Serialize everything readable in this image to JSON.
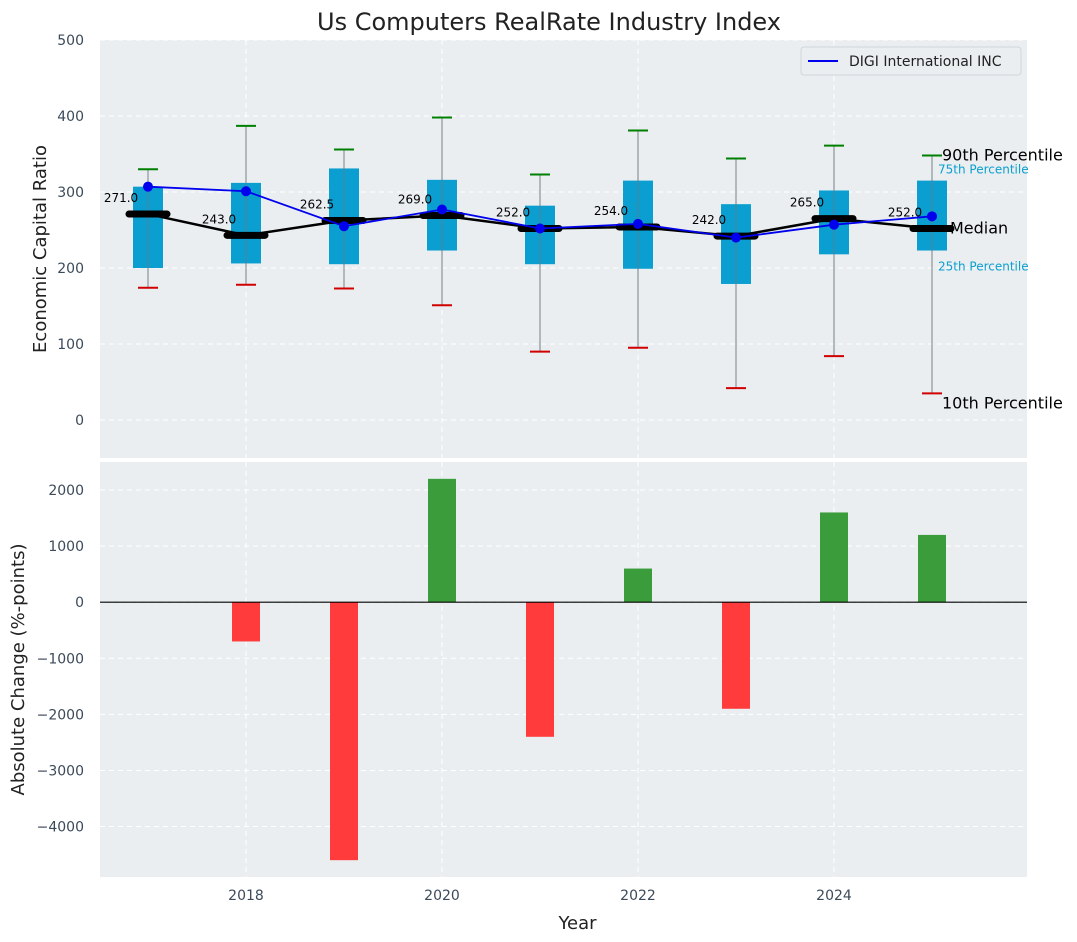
{
  "title": "Us Computers RealRate Industry Index",
  "colors": {
    "panel_bg": "#eaeef0",
    "box_fill": "#0a9fd0",
    "whisker": "#8a9499",
    "cap_top": "#008000",
    "cap_bottom": "#d00000",
    "median": "#000000",
    "company": "#0000ee",
    "bar_positive": "#3a9c3a",
    "bar_negative": "#ff3b3b",
    "zero_line": "#000000",
    "tick_text": "#3c4a5a"
  },
  "chart_data": [
    {
      "type": "box",
      "ylabel": "Economic Capital Ratio",
      "ylim": [
        -50,
        500
      ],
      "yticks": [
        0,
        100,
        200,
        300,
        400,
        500
      ],
      "grid": true,
      "legend": {
        "placement": "top-right",
        "entries": [
          "DIGI International INC"
        ]
      },
      "x": [
        2017,
        2018,
        2019,
        2020,
        2021,
        2022,
        2023,
        2024,
        2025
      ],
      "p10": [
        174,
        178,
        173,
        151,
        90,
        95,
        42,
        84,
        35
      ],
      "p25": [
        200,
        206,
        205,
        223,
        205,
        199,
        179,
        218,
        223
      ],
      "median": [
        271,
        243,
        262.5,
        269,
        252,
        254,
        242,
        265,
        252
      ],
      "median_labels": [
        "271.0",
        "243.0",
        "262.5",
        "269.0",
        "252.0",
        "254.0",
        "242.0",
        "265.0",
        "252.0"
      ],
      "p75": [
        307,
        312,
        331,
        316,
        282,
        315,
        284,
        302,
        315
      ],
      "p90": [
        330,
        387,
        356,
        398,
        323,
        381,
        344,
        361,
        348
      ],
      "series": [
        {
          "name": "DIGI International INC",
          "values": [
            307,
            301,
            255,
            277,
            252,
            258,
            240,
            257,
            268
          ]
        }
      ],
      "annotations": {
        "p90": "90th Percentile",
        "p75": "75th Percentile",
        "median": "Median",
        "p25": "25th Percentile",
        "p10": "10th Percentile"
      }
    },
    {
      "type": "bar",
      "xlabel": "Year",
      "ylabel": "Absolute Change (%-points)",
      "ylim": [
        -4900,
        2500
      ],
      "yticks": [
        -4000,
        -3000,
        -2000,
        -1000,
        0,
        1000,
        2000
      ],
      "ytick_labels": [
        "−4000",
        "−3000",
        "−2000",
        "−1000",
        "0",
        "1000",
        "2000"
      ],
      "xticks": [
        2018,
        2020,
        2022,
        2024
      ],
      "xtick_labels": [
        "2018",
        "2020",
        "2022",
        "2024"
      ],
      "grid": true,
      "x": [
        2018,
        2019,
        2020,
        2021,
        2022,
        2023,
        2024,
        2025
      ],
      "values": [
        -700,
        -4600,
        2200,
        -2400,
        600,
        -1900,
        1600,
        1200
      ]
    }
  ]
}
